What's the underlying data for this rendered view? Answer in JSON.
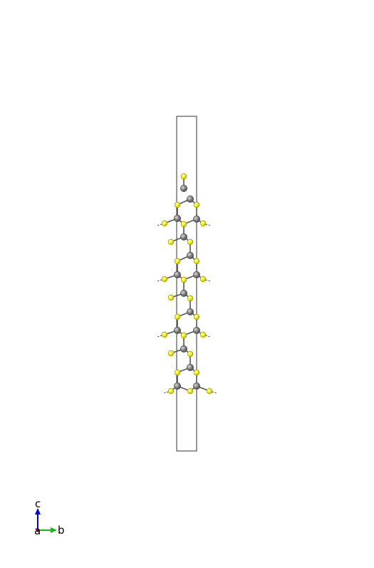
{
  "structure": {
    "atom_types": [
      {
        "element": "C",
        "color": "#808080",
        "edge": "#4a4a4a"
      },
      {
        "element": "S",
        "color": "#f0f028",
        "edge": "#a8a800"
      }
    ],
    "cell_edge_color": "#333333",
    "bond_color": "#555555"
  },
  "axes": {
    "c": {
      "label": "c",
      "color": "#0000cc"
    },
    "b": {
      "label": "b",
      "color": "#11bb11"
    },
    "a": {
      "label": "a",
      "color": "#cc0000"
    }
  }
}
